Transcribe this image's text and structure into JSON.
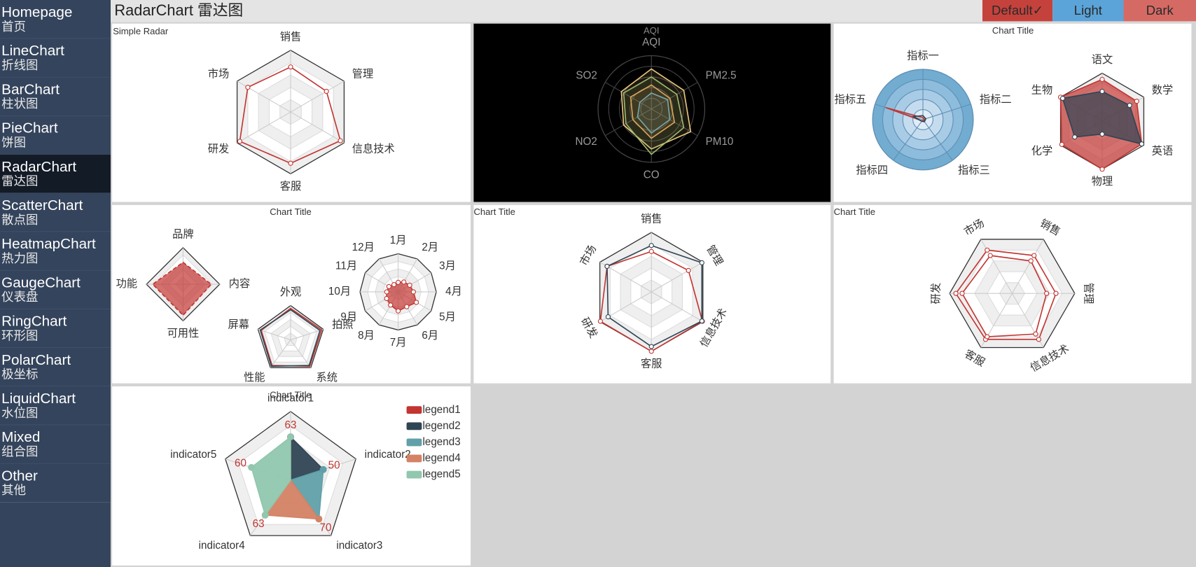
{
  "menu": [
    {
      "en": "Homepage",
      "zh": "首页"
    },
    {
      "en": "LineChart",
      "zh": "折线图"
    },
    {
      "en": "BarChart",
      "zh": "柱状图"
    },
    {
      "en": "PieChart",
      "zh": "饼图"
    },
    {
      "en": "RadarChart",
      "zh": "雷达图",
      "active": true
    },
    {
      "en": "ScatterChart",
      "zh": "散点图"
    },
    {
      "en": "HeatmapChart",
      "zh": "热力图"
    },
    {
      "en": "GaugeChart",
      "zh": "仪表盘"
    },
    {
      "en": "RingChart",
      "zh": "环形图"
    },
    {
      "en": "PolarChart",
      "zh": "极坐标"
    },
    {
      "en": "LiquidChart",
      "zh": "水位图"
    },
    {
      "en": "Mixed",
      "zh": "组合图"
    },
    {
      "en": "Other",
      "zh": "其他"
    }
  ],
  "header": {
    "title": "RadarChart 雷达图",
    "buttons": [
      {
        "label": "Default✓",
        "color": "#c5423c"
      },
      {
        "label": "Light",
        "color": "#5ba4d9"
      },
      {
        "label": "Dark",
        "color": "#d56a64"
      }
    ]
  },
  "panels": [
    {
      "title": "Simple Radar",
      "radars": [
        {
          "type": "radar",
          "shape": "polygon",
          "max": 100,
          "indicators": [
            "销售",
            "管理",
            "信息技术",
            "客服",
            "研发",
            "市场"
          ],
          "series": [
            {
              "color": "#c23531",
              "values": [
                73,
                67,
                93,
                83,
                95,
                80
              ]
            }
          ]
        }
      ]
    },
    {
      "title": "AQI",
      "background": "#000000",
      "radars": [
        {
          "type": "radar",
          "shape": "circle",
          "max": 100,
          "indicators": [
            "AQI",
            "PM2.5",
            "PM10",
            "CO",
            "NO2",
            "SO2"
          ],
          "series": [
            {
              "color": "#e8c77e",
              "area": true,
              "values": [
                75,
                70,
                85,
                75,
                60,
                65
              ]
            },
            {
              "color": "#9fb86e",
              "area": true,
              "values": [
                60,
                55,
                70,
                85,
                55,
                60
              ]
            },
            {
              "color": "#d9a55c",
              "area": true,
              "values": [
                45,
                40,
                50,
                55,
                40,
                45
              ]
            },
            {
              "color": "#7aa6a8",
              "area": true,
              "values": [
                30,
                35,
                40,
                45,
                30,
                25
              ]
            }
          ]
        }
      ]
    },
    {
      "title": "Chart Title",
      "radars": [
        {
          "type": "radar",
          "shape": "circle",
          "max": 100,
          "split_colors": [
            "#72acd1",
            "#8ebcdc",
            "#a9cce6",
            "#c5dcef",
            "#e0edf7"
          ],
          "indicators": [
            "指标一",
            "指标二",
            "指标三",
            "指标四",
            "指标五"
          ],
          "series": [
            {
              "color": "#c23531",
              "values": [
                4,
                3,
                3,
                3,
                78
              ]
            },
            {
              "color": "#2f4554",
              "values": [
                8,
                6,
                5,
                4,
                20
              ]
            }
          ]
        },
        {
          "type": "radar",
          "shape": "polygon",
          "max": 100,
          "indicators": [
            "语文",
            "数学",
            "英语",
            "物理",
            "化学",
            "生物"
          ],
          "series": [
            {
              "color": "#c23531",
              "area": true,
              "values": [
                87,
                83,
                95,
                100,
                97,
                100
              ]
            },
            {
              "color": "#2f4554",
              "area": true,
              "values": [
                62,
                66,
                95,
                27,
                66,
                95
              ]
            }
          ]
        }
      ]
    },
    {
      "title": "Chart Title",
      "radars": [
        {
          "type": "radar",
          "shape": "polygon",
          "max": 100,
          "indicators": [
            "品牌",
            "内容",
            "可用性",
            "功能"
          ],
          "series": [
            {
              "color": "#c23531",
              "area": true,
              "dashed": true,
              "values": [
                60,
                77,
                85,
                83
              ]
            }
          ]
        },
        {
          "type": "radar",
          "shape": "polygon",
          "max": 100,
          "indicators": [
            "外观",
            "拍照",
            "系统",
            "性能",
            "屏幕"
          ],
          "series": [
            {
              "color": "#c23531",
              "values": [
                92,
                95,
                95,
                92,
                90
              ]
            },
            {
              "color": "#2f4554",
              "values": [
                88,
                90,
                92,
                95,
                93
              ]
            }
          ]
        },
        {
          "type": "radar",
          "shape": "polygon",
          "max": 100,
          "indicators": [
            "1月",
            "2月",
            "3月",
            "4月",
            "5月",
            "6月",
            "7月",
            "8月",
            "9月",
            "10月",
            "11月",
            "12月"
          ],
          "series": [
            {
              "color": "#c23531",
              "area": true,
              "values": [
                25,
                30,
                35,
                40,
                55,
                45,
                50,
                40,
                35,
                30,
                28,
                22
              ]
            }
          ]
        }
      ]
    },
    {
      "title": "Chart Title",
      "radars": [
        {
          "type": "radar",
          "shape": "polygon",
          "max": 100,
          "indicators": [
            "销售",
            "管理",
            "信息技术",
            "客服",
            "研发",
            "市场"
          ],
          "series": [
            {
              "color": "#c23531",
              "values": [
                68,
                72,
                99,
                100,
                99,
                86
              ]
            },
            {
              "color": "#2f4554",
              "values": [
                78,
                98,
                98,
                92,
                84,
                86
              ]
            }
          ]
        }
      ]
    },
    {
      "title": "Chart Title",
      "radars": [
        {
          "type": "radar",
          "shape": "polygon",
          "max": 100,
          "indicators": [
            "销售",
            "管理",
            "信息技术",
            "客服",
            "研发",
            "市场"
          ],
          "series": [
            {
              "color": "#c23531",
              "values": [
                70,
                70,
                85,
                85,
                90,
                80
              ]
            },
            {
              "color": "#c23531",
              "values": [
                60,
                55,
                75,
                80,
                80,
                70
              ]
            }
          ]
        }
      ]
    },
    {
      "title": "Chart Title",
      "radars": [
        {
          "type": "radar",
          "shape": "polygon",
          "max": 100,
          "value_labels": true,
          "indicators": [
            "indicator1",
            "indicator2",
            "indicator3",
            "indicator4",
            "indicator5"
          ],
          "series": [
            {
              "name": "legend1",
              "color": "#c23531",
              "area": true,
              "values": [
                63,
                0,
                0,
                0,
                0
              ]
            },
            {
              "name": "legend2",
              "color": "#2f4554",
              "area": true,
              "values": [
                63,
                50,
                0,
                0,
                0
              ]
            },
            {
              "name": "legend3",
              "color": "#61a0a8",
              "area": true,
              "values": [
                0,
                50,
                70,
                0,
                0
              ]
            },
            {
              "name": "legend4",
              "color": "#d48265",
              "area": true,
              "values": [
                0,
                0,
                70,
                63,
                0
              ]
            },
            {
              "name": "legend5",
              "color": "#91c7ae",
              "area": true,
              "values": [
                63,
                0,
                0,
                63,
                60
              ]
            }
          ]
        }
      ]
    }
  ]
}
